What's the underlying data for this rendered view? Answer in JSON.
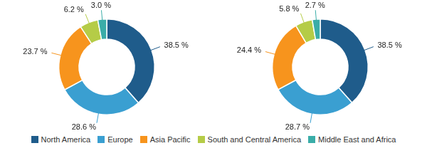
{
  "chart_data": [
    {
      "type": "doughnut",
      "categories": [
        "North America",
        "Europe",
        "Asia Pacific",
        "South and Central America",
        "Middle East and Africa"
      ],
      "values": [
        38.5,
        28.6,
        23.7,
        6.2,
        3.0
      ],
      "value_labels": [
        "38.5 %",
        "28.6 %",
        "23.7 %",
        "6.2 %",
        "3.0 %"
      ],
      "colors": [
        "#1f5c8b",
        "#3a9fd1",
        "#f7941d",
        "#b5cc47",
        "#3aada8"
      ],
      "data_labels": true,
      "legend": "bottom"
    },
    {
      "type": "doughnut",
      "categories": [
        "North America",
        "Europe",
        "Asia Pacific",
        "South and Central America",
        "Middle East and Africa"
      ],
      "values": [
        38.5,
        28.7,
        24.4,
        5.8,
        2.7
      ],
      "value_labels": [
        "38.5 %",
        "28.7 %",
        "24.4 %",
        "5.8 %",
        "2.7 %"
      ],
      "colors": [
        "#1f5c8b",
        "#3a9fd1",
        "#f7941d",
        "#b5cc47",
        "#3aada8"
      ],
      "data_labels": true,
      "legend": "bottom"
    }
  ]
}
